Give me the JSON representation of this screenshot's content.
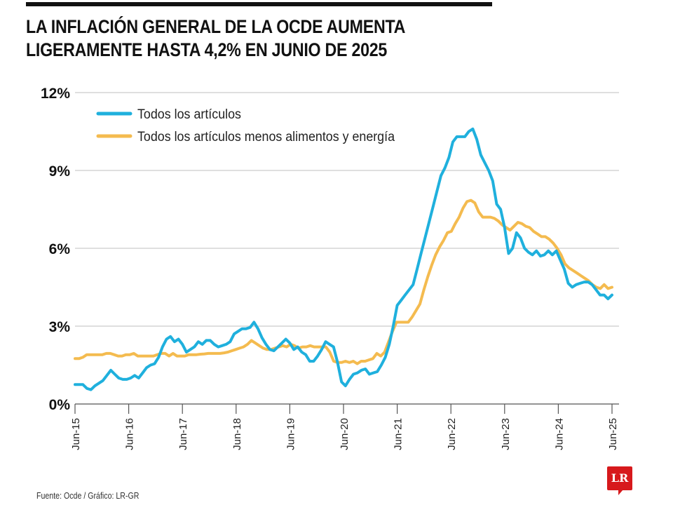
{
  "title_lines": [
    "LA INFLACIÓN GENERAL DE LA OCDE AUMENTA",
    "LIGERAMENTE HASTA 4,2% EN JUNIO DE 2025"
  ],
  "source": "Fuente: Ocde / Gráfico: LR-GR",
  "logo_text": "LR",
  "colors": {
    "all_items": "#1fb0dd",
    "core": "#f4bb4f",
    "grid": "#cccccc",
    "axis": "#555555"
  },
  "chart_data": {
    "type": "line",
    "title": "LA INFLACIÓN GENERAL DE LA OCDE AUMENTA LIGERAMENTE HASTA 4,2% EN JUNIO DE 2025",
    "xlabel": "",
    "ylabel": "",
    "ylim": [
      0,
      12
    ],
    "yticks": [
      0,
      3,
      6,
      9,
      12
    ],
    "ytick_labels": [
      "0%",
      "3%",
      "6%",
      "9%",
      "12%"
    ],
    "xtick_labels": [
      "Jun-15",
      "Jun-16",
      "Jun-17",
      "Jun-18",
      "Jun-19",
      "Jun-20",
      "Jun-21",
      "Jun-22",
      "Jun-23",
      "Jun-24",
      "Jun-25"
    ],
    "x_start": "Jun-15",
    "x_end": "Jun-25",
    "frequency": "monthly (approx.)",
    "grid": true,
    "legend_position": "top-left",
    "series": [
      {
        "name": "Todos los artículos",
        "color": "#1fb0dd",
        "values": [
          0.75,
          0.75,
          0.75,
          0.6,
          0.55,
          0.7,
          0.8,
          0.9,
          1.1,
          1.3,
          1.15,
          1.0,
          0.95,
          0.95,
          1.0,
          1.1,
          1.0,
          1.2,
          1.4,
          1.5,
          1.55,
          1.8,
          2.2,
          2.5,
          2.6,
          2.4,
          2.5,
          2.3,
          2.0,
          2.1,
          2.2,
          2.4,
          2.3,
          2.45,
          2.45,
          2.3,
          2.2,
          2.25,
          2.3,
          2.4,
          2.7,
          2.8,
          2.9,
          2.9,
          2.95,
          3.15,
          2.9,
          2.55,
          2.3,
          2.1,
          2.05,
          2.2,
          2.35,
          2.5,
          2.35,
          2.1,
          2.2,
          2.0,
          1.9,
          1.65,
          1.65,
          1.85,
          2.1,
          2.4,
          2.3,
          2.2,
          1.6,
          0.85,
          0.7,
          0.95,
          1.15,
          1.2,
          1.3,
          1.35,
          1.15,
          1.2,
          1.25,
          1.5,
          1.8,
          2.3,
          3.0,
          3.8,
          4.0,
          4.2,
          4.4,
          4.6,
          5.2,
          5.8,
          6.4,
          7.0,
          7.6,
          8.2,
          8.8,
          9.1,
          9.5,
          10.1,
          10.3,
          10.3,
          10.3,
          10.5,
          10.6,
          10.2,
          9.6,
          9.3,
          9.0,
          8.6,
          7.7,
          7.5,
          6.8,
          5.8,
          6.0,
          6.6,
          6.4,
          6.0,
          5.85,
          5.75,
          5.9,
          5.7,
          5.75,
          5.9,
          5.75,
          5.9,
          5.55,
          5.2,
          4.65,
          4.5,
          4.6,
          4.65,
          4.7,
          4.7,
          4.6,
          4.4,
          4.2,
          4.2,
          4.05,
          4.2
        ]
      },
      {
        "name": "Todos los artículos menos alimentos y energía",
        "color": "#f4bb4f",
        "values": [
          1.75,
          1.75,
          1.8,
          1.9,
          1.9,
          1.9,
          1.9,
          1.9,
          1.95,
          1.95,
          1.9,
          1.85,
          1.85,
          1.9,
          1.9,
          1.95,
          1.85,
          1.85,
          1.85,
          1.85,
          1.85,
          1.9,
          1.95,
          1.95,
          1.85,
          1.95,
          1.85,
          1.85,
          1.85,
          1.9,
          1.9,
          1.9,
          1.92,
          1.93,
          1.95,
          1.95,
          1.95,
          1.95,
          1.97,
          2.0,
          2.05,
          2.1,
          2.15,
          2.2,
          2.3,
          2.45,
          2.35,
          2.25,
          2.15,
          2.1,
          2.1,
          2.15,
          2.2,
          2.25,
          2.2,
          2.3,
          2.25,
          2.15,
          2.2,
          2.2,
          2.25,
          2.2,
          2.2,
          2.2,
          2.2,
          2.0,
          1.65,
          1.6,
          1.6,
          1.65,
          1.6,
          1.65,
          1.55,
          1.65,
          1.65,
          1.7,
          1.75,
          1.95,
          1.85,
          2.0,
          2.4,
          2.8,
          3.15,
          3.15,
          3.15,
          3.15,
          3.35,
          3.6,
          3.85,
          4.4,
          4.9,
          5.35,
          5.75,
          6.05,
          6.3,
          6.6,
          6.65,
          6.95,
          7.2,
          7.55,
          7.8,
          7.85,
          7.75,
          7.4,
          7.2,
          7.2,
          7.2,
          7.15,
          7.05,
          6.9,
          6.8,
          6.7,
          6.85,
          7.0,
          6.95,
          6.85,
          6.8,
          6.65,
          6.55,
          6.45,
          6.45,
          6.35,
          6.2,
          6.0,
          5.75,
          5.4,
          5.25,
          5.15,
          5.05,
          4.95,
          4.85,
          4.75,
          4.6,
          4.5,
          4.45,
          4.6,
          4.45,
          4.5
        ]
      }
    ]
  }
}
